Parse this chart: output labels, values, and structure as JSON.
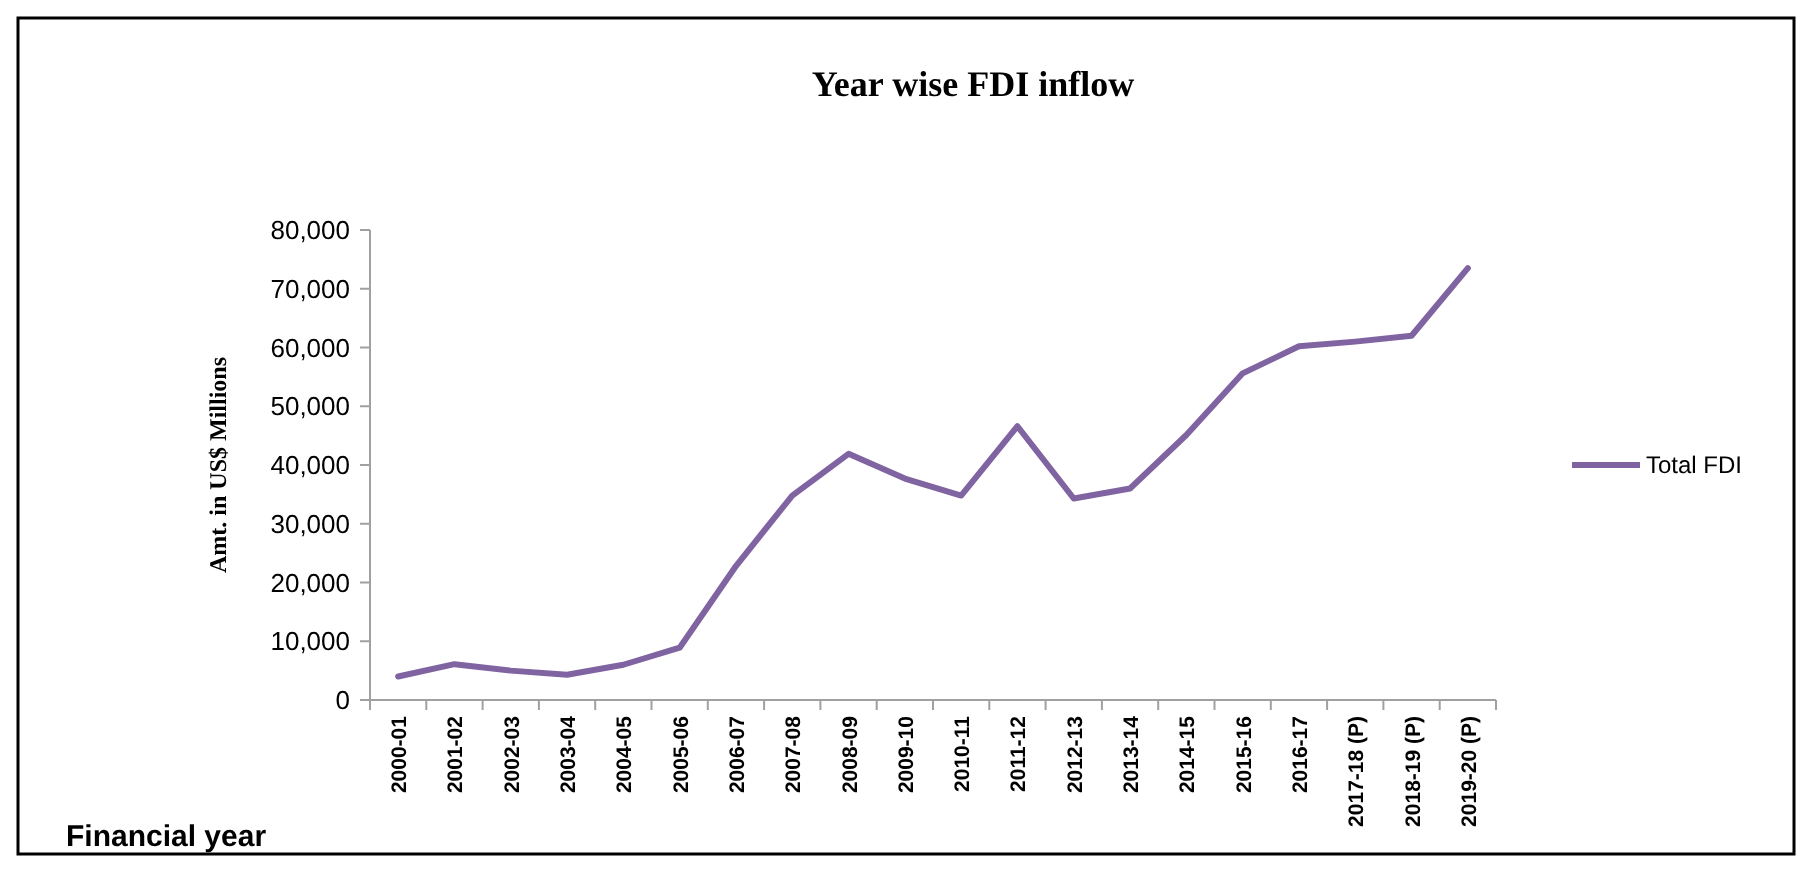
{
  "chart_data": {
    "type": "line",
    "title": "Year wise FDI inflow",
    "xlabel": "Financial year",
    "ylabel": "Amt. in US$ Millions",
    "categories": [
      "2000-01",
      "2001-02",
      "2002-03",
      "2003-04",
      "2004-05",
      "2005-06",
      "2006-07",
      "2007-08",
      "2008-09",
      "2009-10",
      "2010-11",
      "2011-12",
      "2012-13",
      "2013-14",
      "2014-15",
      "2015-16",
      "2016-17",
      "2017-18 (P)",
      "2018-19 (P)",
      "2019-20 (P)"
    ],
    "series": [
      {
        "name": "Total FDI",
        "color": "#8064a2",
        "values": [
          4000,
          6100,
          5000,
          4300,
          6000,
          8900,
          22800,
          34800,
          41900,
          37700,
          34800,
          46600,
          34300,
          36000,
          45100,
          55600,
          60200,
          61000,
          62000,
          73500
        ]
      }
    ],
    "ylim": [
      0,
      80000
    ],
    "yticks": [
      {
        "value": 0,
        "label": "0"
      },
      {
        "value": 10000,
        "label": "10,000"
      },
      {
        "value": 20000,
        "label": "20,000"
      },
      {
        "value": 30000,
        "label": "30,000"
      },
      {
        "value": 40000,
        "label": "40,000"
      },
      {
        "value": 50000,
        "label": "50,000"
      },
      {
        "value": 60000,
        "label": "60,000"
      },
      {
        "value": 70000,
        "label": "70,000"
      },
      {
        "value": 80000,
        "label": "80,000"
      }
    ],
    "legend": "right",
    "grid": false
  }
}
